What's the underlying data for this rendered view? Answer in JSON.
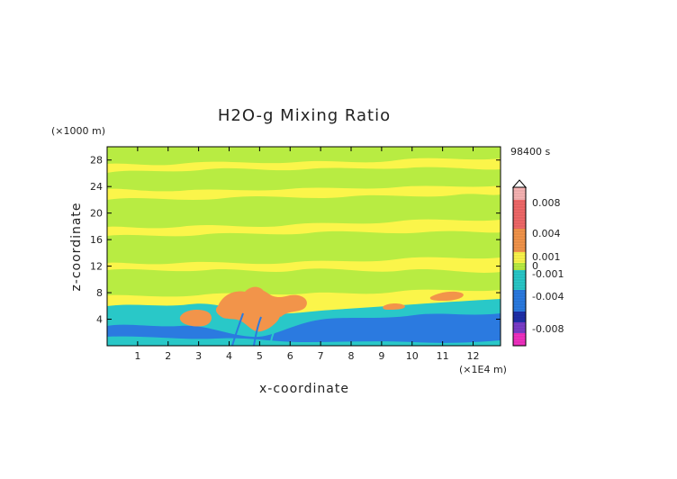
{
  "chart_data": {
    "type": "heatmap",
    "title": "H2O-g Mixing Ratio",
    "xlabel": "x-coordinate",
    "ylabel": "z-coordinate",
    "x_unit": "(×1E4 m)",
    "y_unit": "(×1000 m)",
    "time_label": "98400 s",
    "xlim": [
      0,
      12.9
    ],
    "ylim": [
      0,
      30
    ],
    "x_ticks": [
      "1",
      "2",
      "3",
      "4",
      "5",
      "6",
      "7",
      "8",
      "9",
      "10",
      "11",
      "12"
    ],
    "y_ticks": [
      "4",
      "8",
      "12",
      "16",
      "20",
      "24",
      "28"
    ],
    "colorbar": {
      "labels": [
        "0.008",
        "0.004",
        "0.001",
        "0",
        "-0.001",
        "-0.004",
        "-0.008"
      ],
      "range": [
        -0.01,
        0.01
      ],
      "colors": {
        "max": "#f7b3b3",
        "red": "#f06868",
        "orange": "#f2944a",
        "yellow": "#fbf54a",
        "green": "#b8ec42",
        "cyan": "#29c8c8",
        "blue": "#2b7ae0",
        "navy": "#1e2ea8",
        "purple": "#7a3cc8",
        "magenta": "#f030c0"
      }
    },
    "field_regions": {
      "background": "yellow",
      "upper_levels": "green",
      "low_levels": "cyan",
      "boundary_layer": "blue",
      "plume_core": "orange"
    }
  }
}
